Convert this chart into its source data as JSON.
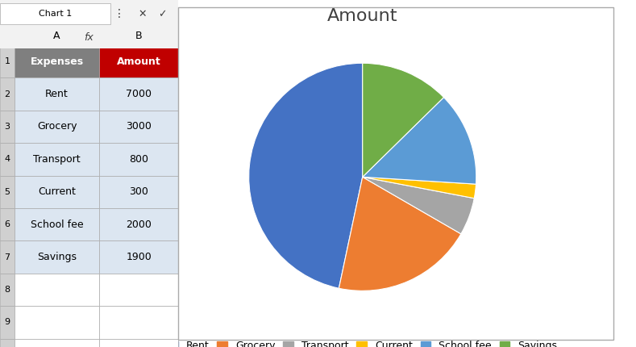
{
  "title": "Amount",
  "labels": [
    "Rent",
    "Grocery",
    "Transport",
    "Current",
    "School fee",
    "Savings"
  ],
  "values": [
    7000,
    3000,
    800,
    300,
    2000,
    1900
  ],
  "colors": [
    "#4472C4",
    "#ED7D31",
    "#A5A5A5",
    "#FFC000",
    "#5B9BD5",
    "#70AD47"
  ],
  "table_headers": [
    "Expenses",
    "Amount"
  ],
  "table_data": [
    [
      "Rent",
      "7000"
    ],
    [
      "Grocery",
      "3000"
    ],
    [
      "Transport",
      "800"
    ],
    [
      "Current",
      "300"
    ],
    [
      "School fee",
      "2000"
    ],
    [
      "Savings",
      "1900"
    ]
  ],
  "bg_color": "#FFFFFF",
  "title_fontsize": 16,
  "legend_fontsize": 9,
  "startangle": 90
}
